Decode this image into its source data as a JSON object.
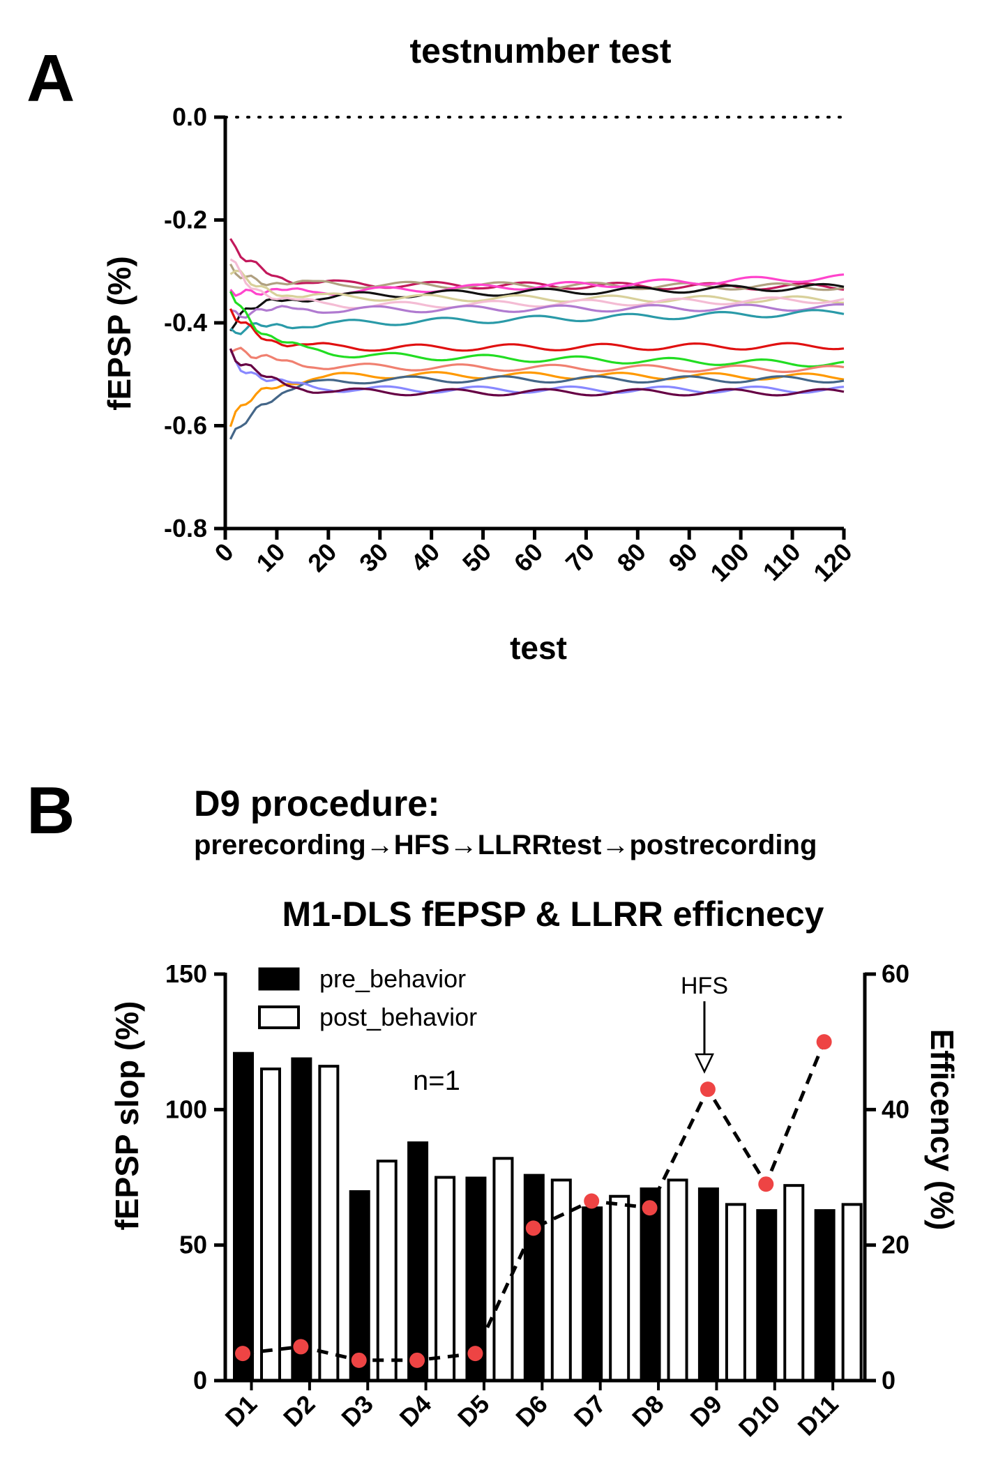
{
  "panels": {
    "a_letter": "A",
    "b_letter": "B"
  },
  "procedure": {
    "title": "D9 procedure:",
    "steps": "prerecording→HFS→LLRRtest→postrecording"
  },
  "chart_data": [
    {
      "type": "line",
      "title": "testnumber test",
      "xlabel": "test",
      "ylabel": "fEPSP (%)",
      "xlim": [
        0,
        120
      ],
      "ylim": [
        -0.8,
        0.0
      ],
      "x_ticks": [
        "0",
        "10",
        "20",
        "30",
        "40",
        "50",
        "60",
        "70",
        "80",
        "90",
        "100",
        "110",
        "120"
      ],
      "y_ticks": [
        "0.0",
        "-0.2",
        "-0.4",
        "-0.6",
        "-0.8"
      ],
      "reference_line": {
        "y": 0.0,
        "style": "dotted"
      },
      "n_points": 120,
      "series": [
        {
          "color": "#c2185b",
          "start": -0.25,
          "plateau": -0.325,
          "end": -0.33
        },
        {
          "color": "#b0a080",
          "start": -0.3,
          "plateau": -0.325,
          "end": -0.33
        },
        {
          "color": "#ff44cc",
          "start": -0.33,
          "plateau": -0.345,
          "end": -0.312
        },
        {
          "color": "#111111",
          "start": -0.4,
          "plateau": -0.35,
          "end": -0.33
        },
        {
          "color": "#d8d09a",
          "start": -0.3,
          "plateau": -0.35,
          "end": -0.355
        },
        {
          "color": "#f4bcd4",
          "start": -0.28,
          "plateau": -0.37,
          "end": -0.355
        },
        {
          "color": "#b07ad0",
          "start": -0.38,
          "plateau": -0.375,
          "end": -0.37
        },
        {
          "color": "#2a9aa8",
          "start": -0.42,
          "plateau": -0.405,
          "end": -0.38
        },
        {
          "color": "#e01010",
          "start": -0.38,
          "plateau": -0.45,
          "end": -0.445
        },
        {
          "color": "#22dd22",
          "start": -0.33,
          "plateau": -0.46,
          "end": -0.48
        },
        {
          "color": "#f08070",
          "start": -0.44,
          "plateau": -0.485,
          "end": -0.49
        },
        {
          "color": "#ff9900",
          "start": -0.6,
          "plateau": -0.5,
          "end": -0.505
        },
        {
          "color": "#446688",
          "start": -0.64,
          "plateau": -0.51,
          "end": -0.51
        },
        {
          "color": "#8888ff",
          "start": -0.46,
          "plateau": -0.53,
          "end": -0.53
        },
        {
          "color": "#660044",
          "start": -0.45,
          "plateau": -0.535,
          "end": -0.535
        }
      ]
    },
    {
      "type": "bar",
      "title": "M1-DLS fEPSP & LLRR efficnecy",
      "categories": [
        "D1",
        "D2",
        "D3",
        "D4",
        "D5",
        "D6",
        "D7",
        "D8",
        "D9",
        "D10",
        "D11"
      ],
      "ylabel": "fEPSP slop (%)",
      "y2label": "Efficency (%)",
      "ylim": [
        0,
        150
      ],
      "y2lim": [
        0,
        60
      ],
      "y_ticks": [
        "0",
        "50",
        "100",
        "150"
      ],
      "y2_ticks": [
        "0",
        "20",
        "40",
        "60"
      ],
      "series": [
        {
          "name": "pre_behavior",
          "style": "filled",
          "color": "#000000",
          "values": [
            121,
            119,
            70,
            88,
            75,
            76,
            64,
            71,
            71,
            63,
            63
          ]
        },
        {
          "name": "post_behavior",
          "style": "open",
          "color": "#000000",
          "values": [
            115,
            116,
            81,
            75,
            82,
            74,
            68,
            74,
            65,
            72,
            65
          ]
        }
      ],
      "line_series": {
        "axis": "right",
        "color": "#ee4444",
        "line_style": "dashed",
        "values": [
          4,
          5,
          3,
          3,
          4,
          22.5,
          26.5,
          25.5,
          43,
          29,
          50
        ]
      },
      "annotations": {
        "n_label": "n=1",
        "arrow_label": "HFS",
        "arrow_category": "D9"
      },
      "legend_position": "top-left"
    }
  ]
}
